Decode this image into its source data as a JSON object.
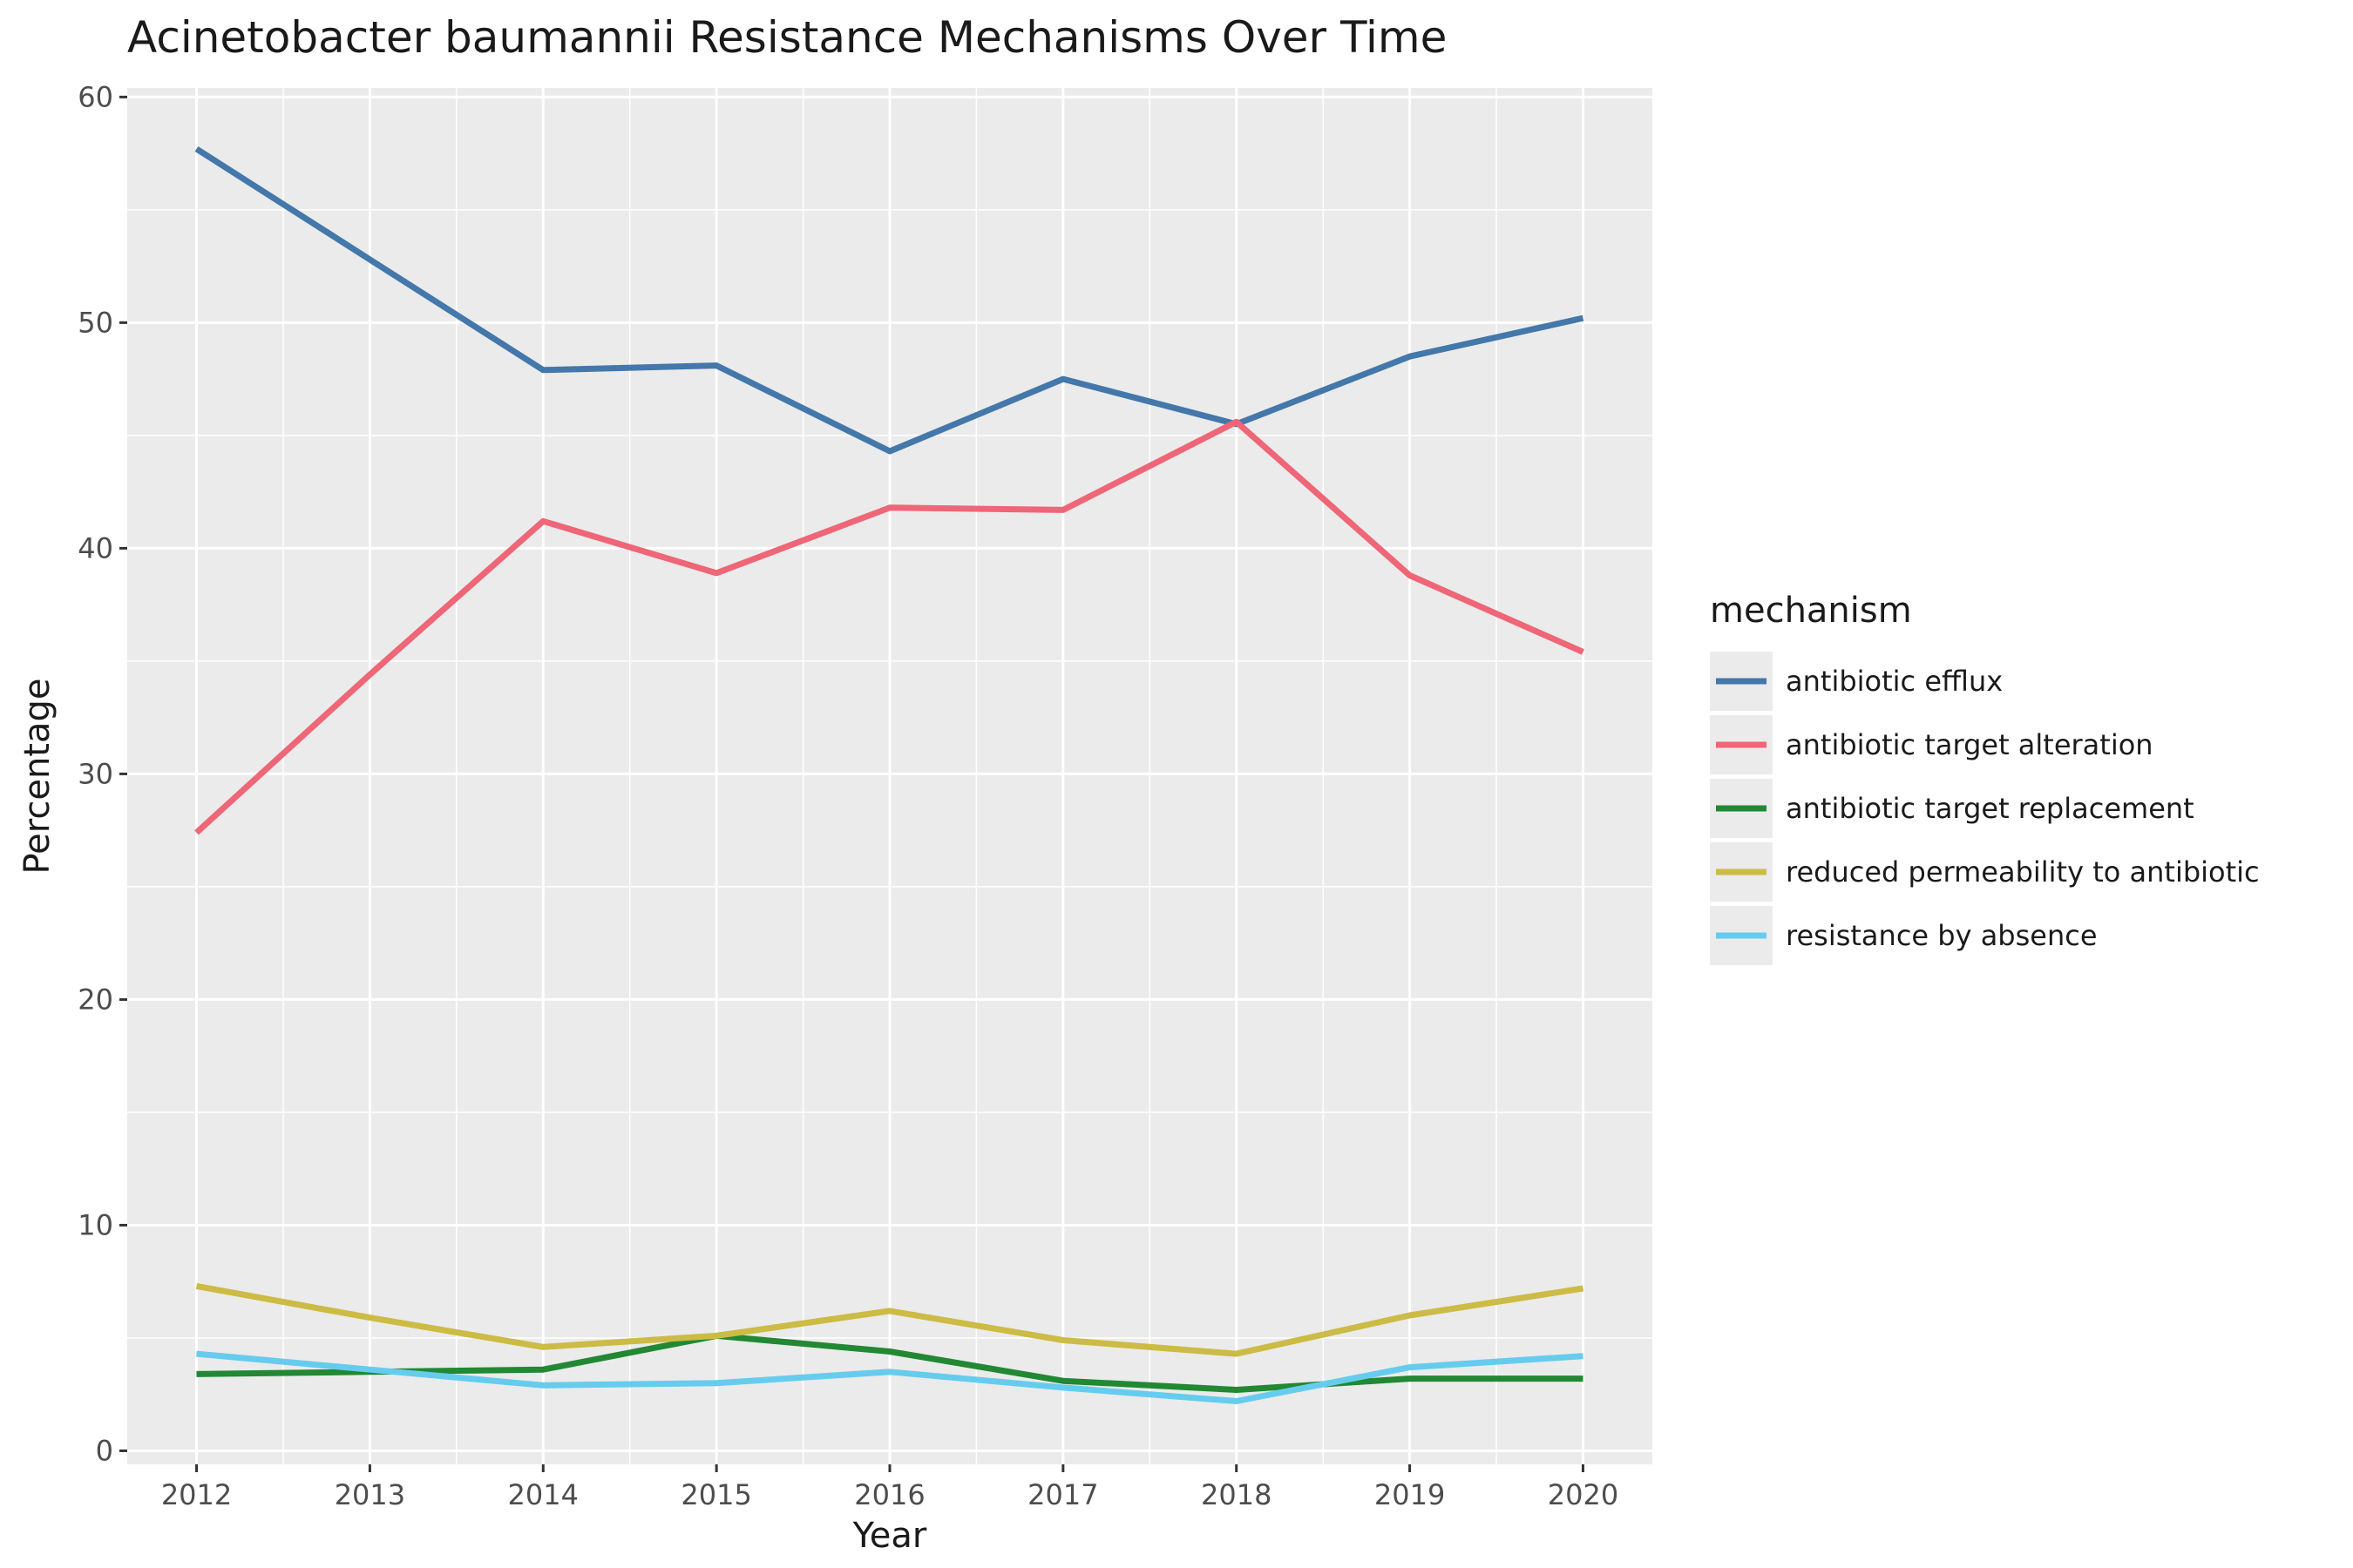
{
  "chart_data": {
    "type": "line",
    "title": "Acinetobacter baumannii Resistance Mechanisms Over Time",
    "xlabel": "Year",
    "ylabel": "Percentage",
    "x": [
      2012,
      2013,
      2014,
      2015,
      2016,
      2017,
      2018,
      2019,
      2020
    ],
    "x_tick_labels": [
      "2012",
      "2013",
      "2014",
      "2015",
      "2016",
      "2017",
      "2018",
      "2019",
      "2020"
    ],
    "xlim": [
      2011.6,
      2020.4
    ],
    "ylim": [
      -0.6,
      60.4
    ],
    "y_ticks": [
      0,
      10,
      20,
      30,
      40,
      50,
      60
    ],
    "y_tick_labels": [
      "0",
      "10",
      "20",
      "30",
      "40",
      "50",
      "60"
    ],
    "grid": true,
    "background": "#ebebeb",
    "legend": {
      "title": "mechanism",
      "placement": "right"
    },
    "series": [
      {
        "name": "antibiotic efflux",
        "color": "#4477aa",
        "values": [
          57.7,
          52.8,
          47.9,
          48.1,
          44.3,
          47.5,
          45.5,
          48.5,
          50.2
        ]
      },
      {
        "name": "antibiotic target alteration",
        "color": "#ee6677",
        "values": [
          27.4,
          34.4,
          41.2,
          38.9,
          41.8,
          41.7,
          45.6,
          38.8,
          35.4
        ]
      },
      {
        "name": "antibiotic target replacement",
        "color": "#228833",
        "values": [
          3.4,
          3.5,
          3.6,
          5.1,
          4.4,
          3.1,
          2.7,
          3.2,
          3.2
        ]
      },
      {
        "name": "reduced permeability to antibiotic",
        "color": "#ccbb44",
        "values": [
          7.3,
          5.9,
          4.6,
          5.1,
          6.2,
          4.9,
          4.3,
          6.0,
          7.2
        ]
      },
      {
        "name": "resistance by absence",
        "color": "#66ccee",
        "values": [
          4.3,
          3.6,
          2.9,
          3.0,
          3.5,
          2.8,
          2.2,
          3.7,
          4.2
        ]
      }
    ]
  }
}
